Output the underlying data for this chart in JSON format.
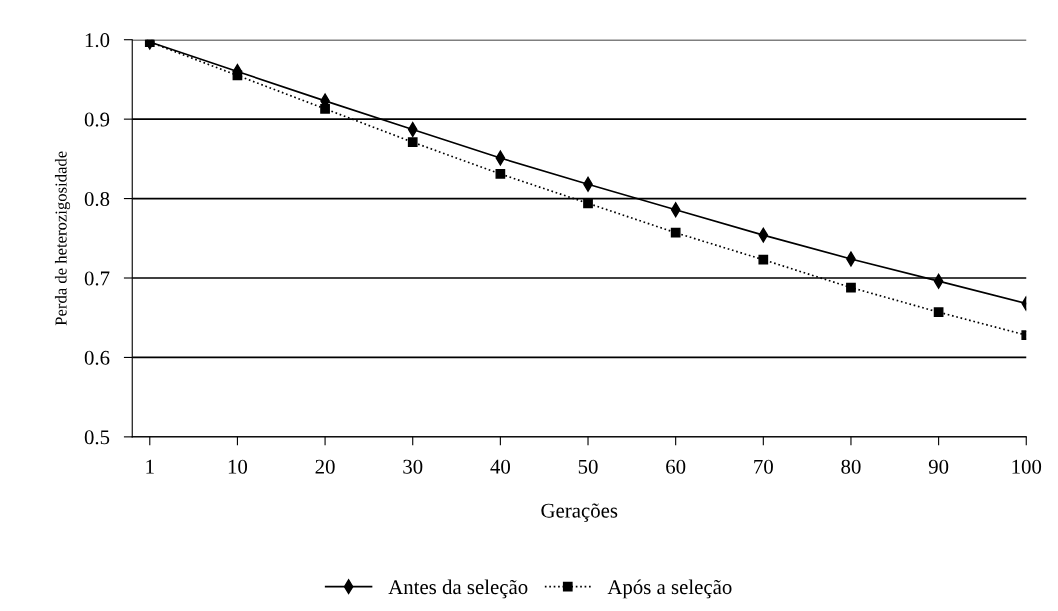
{
  "chart_data": {
    "type": "line",
    "xlabel": "Gerações",
    "ylabel": "Perda de heterozigosidade",
    "categories": [
      "1",
      "10",
      "20",
      "30",
      "40",
      "50",
      "60",
      "70",
      "80",
      "90",
      "100"
    ],
    "series": [
      {
        "name": "Antes da seleção",
        "color": "#000000",
        "marker": "diamond",
        "line_style": "solid",
        "values": [
          0.997,
          0.96,
          0.923,
          0.887,
          0.851,
          0.818,
          0.786,
          0.754,
          0.724,
          0.696,
          0.668
        ]
      },
      {
        "name": "Após a seleção",
        "color": "#000000",
        "marker": "square",
        "line_style": "dotted",
        "values": [
          0.997,
          0.955,
          0.913,
          0.871,
          0.831,
          0.794,
          0.757,
          0.723,
          0.688,
          0.657,
          0.628
        ]
      }
    ],
    "ylim": [
      0.5,
      1.0
    ],
    "yticks": [
      {
        "value": 0.5,
        "label": "0.5"
      },
      {
        "value": 0.6,
        "label": "0.6"
      },
      {
        "value": 0.7,
        "label": "0.7"
      },
      {
        "value": 0.8,
        "label": "0.8"
      },
      {
        "value": 0.9,
        "label": "0.9"
      },
      {
        "value": 1.0,
        "label": "1.0"
      }
    ],
    "grid": "y",
    "legend": "bottom"
  }
}
